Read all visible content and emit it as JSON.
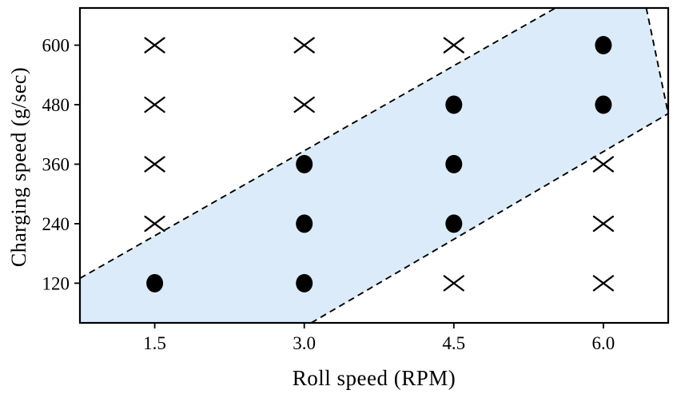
{
  "chart_data": {
    "type": "scatter",
    "title": "",
    "xlabel": "Roll speed (RPM)",
    "ylabel": "Charging speed (g/sec)",
    "xlim": [
      0.75,
      6.65
    ],
    "ylim": [
      40,
      675
    ],
    "grid": false,
    "legend": false,
    "x_ticks": [
      {
        "value": 1.5,
        "label": "1.5"
      },
      {
        "value": 3.0,
        "label": "3.0"
      },
      {
        "value": 4.5,
        "label": "4.5"
      },
      {
        "value": 6.0,
        "label": "6.0"
      }
    ],
    "y_ticks": [
      {
        "value": 120,
        "label": "120"
      },
      {
        "value": 240,
        "label": "240"
      },
      {
        "value": 360,
        "label": "360"
      },
      {
        "value": 480,
        "label": "480"
      },
      {
        "value": 600,
        "label": "600"
      }
    ],
    "series": [
      {
        "name": "filled-circle-points",
        "marker": "circle",
        "color": "#000000",
        "points": [
          [
            1.5,
            120
          ],
          [
            3.0,
            120
          ],
          [
            3.0,
            240
          ],
          [
            3.0,
            360
          ],
          [
            4.5,
            240
          ],
          [
            4.5,
            360
          ],
          [
            4.5,
            480
          ],
          [
            6.0,
            480
          ],
          [
            6.0,
            600
          ]
        ]
      },
      {
        "name": "cross-points",
        "marker": "x",
        "color": "#000000",
        "points": [
          [
            1.5,
            240
          ],
          [
            1.5,
            360
          ],
          [
            1.5,
            480
          ],
          [
            1.5,
            600
          ],
          [
            3.0,
            480
          ],
          [
            3.0,
            600
          ],
          [
            4.5,
            120
          ],
          [
            4.5,
            600
          ],
          [
            6.0,
            120
          ],
          [
            6.0,
            240
          ],
          [
            6.0,
            360
          ]
        ]
      }
    ],
    "band": {
      "name": "shaded-diagonal-band",
      "fill": "#dcebf9",
      "border_color": "#000000",
      "border_style": "dashed",
      "polygon": [
        [
          0.75,
          130
        ],
        [
          5.52,
          675
        ],
        [
          6.43,
          675
        ],
        [
          6.65,
          462
        ],
        [
          3.07,
          40
        ],
        [
          0.75,
          40
        ]
      ],
      "border_lines": [
        [
          [
            0.75,
            130
          ],
          [
            5.52,
            675
          ]
        ],
        [
          [
            3.07,
            40
          ],
          [
            6.65,
            462
          ]
        ],
        [
          [
            6.43,
            675
          ],
          [
            6.65,
            462
          ]
        ]
      ]
    }
  }
}
